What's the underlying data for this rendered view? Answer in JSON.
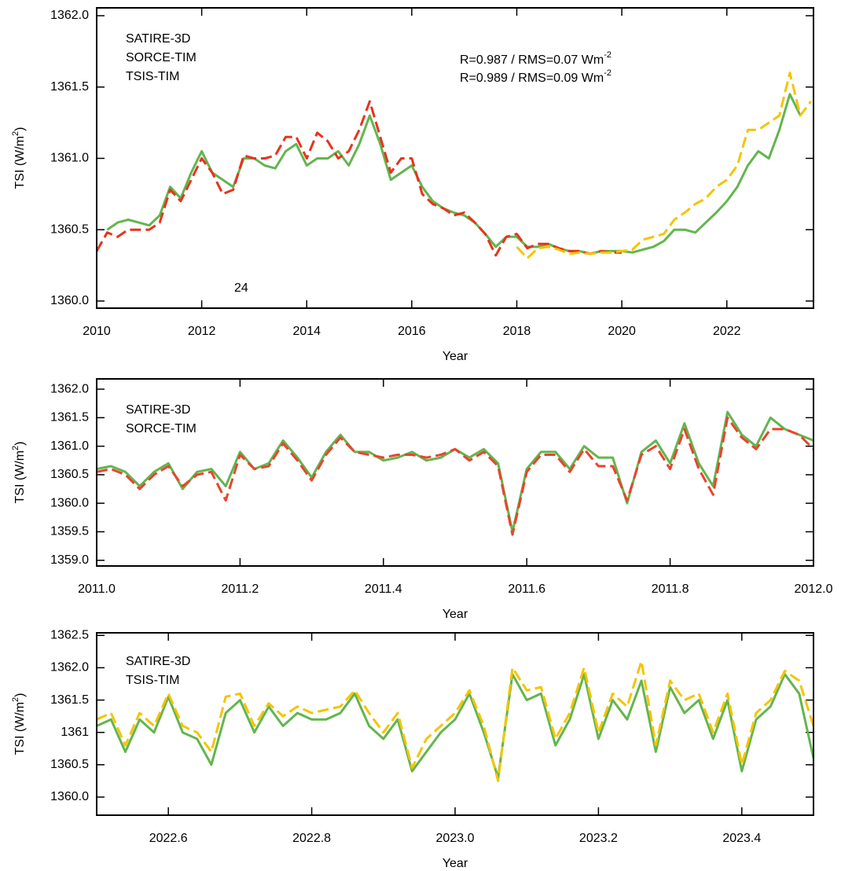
{
  "chart_data": [
    {
      "type": "line",
      "xlabel": "Year",
      "ylabel": [
        "TSI (W/m",
        "2",
        ")"
      ],
      "xlim": [
        2010,
        2023.65
      ],
      "ylim": [
        1359.95,
        1362.055
      ],
      "xticks": [
        2010,
        2012,
        2014,
        2016,
        2018,
        2020,
        2022
      ],
      "yticks": [
        {
          "value": 1360,
          "label": "1360.0"
        },
        1360.5,
        {
          "value": 1361,
          "label": "1361.0"
        },
        1361.5,
        {
          "value": 1362,
          "label": "1362.0"
        }
      ],
      "x": [
        2010.0,
        2010.2,
        2010.4,
        2010.6,
        2010.8,
        2011.0,
        2011.2,
        2011.4,
        2011.6,
        2011.8,
        2012.0,
        2012.2,
        2012.4,
        2012.6,
        2012.8,
        2013.0,
        2013.2,
        2013.4,
        2013.6,
        2013.8,
        2014.0,
        2014.2,
        2014.4,
        2014.6,
        2014.8,
        2015.0,
        2015.2,
        2015.4,
        2015.6,
        2015.8,
        2016.0,
        2016.2,
        2016.4,
        2016.6,
        2016.8,
        2017.0,
        2017.2,
        2017.4,
        2017.6,
        2017.8,
        2018.0,
        2018.2,
        2018.4,
        2018.6,
        2018.8,
        2019.0,
        2019.2,
        2019.4,
        2019.6,
        2019.8,
        2020.0,
        2020.2,
        2020.4,
        2020.6,
        2020.8,
        2021.0,
        2021.2,
        2021.4,
        2021.6,
        2021.8,
        2022.0,
        2022.2,
        2022.4,
        2022.6,
        2022.8,
        2023.0,
        2023.2,
        2023.4,
        2023.6
      ],
      "series": [
        {
          "name": "SATIRE-3D",
          "color": "#63b54f",
          "dashed": false,
          "values": [
            null,
            1360.5,
            1360.55,
            1360.57,
            1360.55,
            1360.53,
            1360.6,
            1360.8,
            1360.72,
            1360.9,
            1361.05,
            1360.9,
            1360.85,
            1360.8,
            1361.0,
            1361.0,
            1360.95,
            1360.93,
            1361.05,
            1361.1,
            1360.95,
            1361.0,
            1361.0,
            1361.05,
            1360.95,
            1361.1,
            1361.3,
            1361.1,
            1360.85,
            1360.9,
            1360.95,
            1360.8,
            1360.7,
            1360.65,
            1360.62,
            1360.6,
            1360.55,
            1360.47,
            1360.38,
            1360.45,
            1360.45,
            1360.38,
            1360.38,
            1360.4,
            1360.37,
            1360.35,
            1360.35,
            1360.33,
            1360.35,
            1360.35,
            1360.35,
            1360.34,
            1360.36,
            1360.38,
            1360.42,
            1360.5,
            1360.5,
            1360.48,
            1360.55,
            1360.62,
            1360.7,
            1360.8,
            1360.95,
            1361.05,
            1361.0,
            1361.2,
            1361.45,
            1361.3,
            null
          ]
        },
        {
          "name": "SORCE-TIM",
          "color": "#e8331c",
          "dashed": true,
          "values": [
            1360.35,
            1360.48,
            1360.45,
            1360.5,
            1360.5,
            1360.5,
            1360.55,
            1360.78,
            1360.7,
            1360.85,
            1361.0,
            1360.9,
            1360.75,
            1360.78,
            1361.02,
            1361.0,
            1361.0,
            1361.02,
            1361.15,
            1361.15,
            1361.0,
            1361.18,
            1361.12,
            1361.0,
            1361.05,
            1361.2,
            1361.4,
            1361.15,
            1360.9,
            1361.0,
            1361.0,
            1360.75,
            1360.68,
            1360.65,
            1360.6,
            1360.62,
            1360.55,
            1360.47,
            1360.32,
            1360.45,
            1360.47,
            1360.37,
            1360.4,
            1360.4,
            1360.37,
            1360.35,
            1360.35,
            1360.33,
            1360.35,
            1360.34,
            1360.34,
            null,
            null,
            null,
            null,
            null,
            null,
            null,
            null,
            null,
            null,
            null,
            null,
            null,
            null,
            null,
            null,
            null,
            null
          ]
        },
        {
          "name": "TSIS-TIM",
          "color": "#f5c400",
          "dashed": true,
          "values": [
            null,
            null,
            null,
            null,
            null,
            null,
            null,
            null,
            null,
            null,
            null,
            null,
            null,
            null,
            null,
            null,
            null,
            null,
            null,
            null,
            null,
            null,
            null,
            null,
            null,
            null,
            null,
            null,
            null,
            null,
            null,
            null,
            null,
            null,
            null,
            null,
            null,
            null,
            null,
            null,
            1360.38,
            1360.3,
            1360.37,
            1360.38,
            1360.36,
            1360.33,
            1360.34,
            1360.33,
            1360.34,
            1360.34,
            1360.35,
            1360.36,
            1360.43,
            1360.45,
            1360.47,
            1360.57,
            1360.62,
            1360.68,
            1360.72,
            1360.8,
            1360.85,
            1360.95,
            1361.2,
            1361.2,
            1361.25,
            1361.3,
            1361.6,
            1361.3,
            1361.4
          ]
        }
      ],
      "annotations": [
        {
          "text": "R=0.987 / RMS=0.07 Wm",
          "sup": "-2",
          "color": "#e8452c"
        },
        {
          "text": "R=0.989 / RMS=0.09 Wm",
          "sup": "-2",
          "color": "#f5c400"
        },
        {
          "text": "24",
          "color": "#000000"
        }
      ]
    },
    {
      "type": "line",
      "xlabel": "Year",
      "ylabel": [
        "TSI (W/m",
        "2",
        ")"
      ],
      "xlim": [
        2011.0,
        2012.0
      ],
      "ylim": [
        1358.9,
        1362.18
      ],
      "xticks": [
        {
          "value": 2011,
          "label": "2011.0"
        },
        2011.2,
        2011.4,
        2011.6,
        2011.8,
        {
          "value": 2012,
          "label": "2012.0"
        }
      ],
      "yticks": [
        {
          "value": 1359,
          "label": "1359.0"
        },
        1359.5,
        {
          "value": 1360,
          "label": "1360.0"
        },
        1360.5,
        {
          "value": 1361,
          "label": "1361.0"
        },
        1361.5,
        {
          "value": 1362,
          "label": "1362.0"
        }
      ],
      "x": [
        2011.0,
        2011.02,
        2011.04,
        2011.06,
        2011.08,
        2011.1,
        2011.12,
        2011.14,
        2011.16,
        2011.18,
        2011.2,
        2011.22,
        2011.24,
        2011.26,
        2011.28,
        2011.3,
        2011.32,
        2011.34,
        2011.36,
        2011.38,
        2011.4,
        2011.42,
        2011.44,
        2011.46,
        2011.48,
        2011.5,
        2011.52,
        2011.54,
        2011.56,
        2011.58,
        2011.6,
        2011.62,
        2011.64,
        2011.66,
        2011.68,
        2011.7,
        2011.72,
        2011.74,
        2011.76,
        2011.78,
        2011.8,
        2011.82,
        2011.84,
        2011.86,
        2011.88,
        2011.9,
        2011.92,
        2011.94,
        2011.96,
        2011.98,
        2012.0
      ],
      "series": [
        {
          "name": "SATIRE-3D",
          "color": "#63b54f",
          "dashed": false,
          "values": [
            1360.6,
            1360.65,
            1360.55,
            1360.3,
            1360.55,
            1360.7,
            1360.25,
            1360.55,
            1360.6,
            1360.3,
            1360.9,
            1360.6,
            1360.7,
            1361.1,
            1360.8,
            1360.45,
            1360.9,
            1361.2,
            1360.9,
            1360.9,
            1360.75,
            1360.8,
            1360.9,
            1360.75,
            1360.8,
            1360.95,
            1360.8,
            1360.95,
            1360.7,
            1359.5,
            1360.6,
            1360.9,
            1360.9,
            1360.6,
            1361.0,
            1360.8,
            1360.8,
            1360.0,
            1360.9,
            1361.1,
            1360.7,
            1361.4,
            1360.7,
            1360.3,
            1361.6,
            1361.2,
            1361.0,
            1361.5,
            1361.3,
            1361.2,
            1361.1
          ]
        },
        {
          "name": "SORCE-TIM",
          "color": "#e8452c",
          "dashed": true,
          "values": [
            1360.55,
            1360.6,
            1360.5,
            1360.25,
            1360.5,
            1360.65,
            1360.3,
            1360.5,
            1360.55,
            1360.05,
            1360.85,
            1360.6,
            1360.65,
            1361.05,
            1360.75,
            1360.4,
            1360.85,
            1361.15,
            1360.9,
            1360.85,
            1360.8,
            1360.85,
            1360.85,
            1360.8,
            1360.85,
            1360.95,
            1360.75,
            1360.9,
            1360.65,
            1359.45,
            1360.55,
            1360.85,
            1360.85,
            1360.55,
            1360.95,
            1360.65,
            1360.65,
            1360.05,
            1360.85,
            1361.0,
            1360.6,
            1361.3,
            1360.6,
            1360.15,
            1361.5,
            1361.15,
            1360.95,
            1361.3,
            1361.3,
            1361.2,
            1360.95
          ]
        }
      ]
    },
    {
      "type": "line",
      "xlabel": "Year",
      "ylabel": [
        "TSI (W/m",
        "2",
        ")"
      ],
      "xlim": [
        2022.5,
        2023.5
      ],
      "ylim": [
        1359.72,
        1362.54
      ],
      "xticks": [
        2022.6,
        2022.8,
        {
          "value": 2023,
          "label": "2023.0"
        },
        2023.2,
        2023.4
      ],
      "yticks": [
        {
          "value": 1360,
          "label": "1360.0"
        },
        1360.5,
        1361,
        1361.5,
        {
          "value": 1362,
          "label": "1362.0"
        },
        1362.5
      ],
      "x": [
        2022.5,
        2022.52,
        2022.54,
        2022.56,
        2022.58,
        2022.6,
        2022.62,
        2022.64,
        2022.66,
        2022.68,
        2022.7,
        2022.72,
        2022.74,
        2022.76,
        2022.78,
        2022.8,
        2022.82,
        2022.84,
        2022.86,
        2022.88,
        2022.9,
        2022.92,
        2022.94,
        2022.96,
        2022.98,
        2023.0,
        2023.02,
        2023.04,
        2023.06,
        2023.08,
        2023.1,
        2023.12,
        2023.14,
        2023.16,
        2023.18,
        2023.2,
        2023.22,
        2023.24,
        2023.26,
        2023.28,
        2023.3,
        2023.32,
        2023.34,
        2023.36,
        2023.38,
        2023.4,
        2023.42,
        2023.44,
        2023.46,
        2023.48,
        2023.5
      ],
      "series": [
        {
          "name": "SATIRE-3D",
          "color": "#63b54f",
          "dashed": false,
          "values": [
            1361.1,
            1361.2,
            1360.7,
            1361.2,
            1361.0,
            1361.55,
            1361.0,
            1360.9,
            1360.5,
            1361.3,
            1361.5,
            1361.0,
            1361.4,
            1361.1,
            1361.3,
            1361.2,
            1361.2,
            1361.3,
            1361.6,
            1361.1,
            1360.9,
            1361.2,
            1360.4,
            1360.7,
            1361.0,
            1361.2,
            1361.6,
            1361.0,
            1360.3,
            1361.9,
            1361.5,
            1361.6,
            1360.8,
            1361.2,
            1361.9,
            1360.9,
            1361.5,
            1361.2,
            1361.8,
            1360.7,
            1361.7,
            1361.3,
            1361.5,
            1360.9,
            1361.5,
            1360.4,
            1361.2,
            1361.4,
            1361.9,
            1361.6,
            1360.6
          ]
        },
        {
          "name": "TSIS-TIM",
          "color": "#f5c400",
          "dashed": true,
          "values": [
            1361.2,
            1361.3,
            1360.8,
            1361.3,
            1361.1,
            1361.6,
            1361.1,
            1361.0,
            1360.7,
            1361.55,
            1361.6,
            1361.1,
            1361.45,
            1361.25,
            1361.4,
            1361.3,
            1361.35,
            1361.4,
            1361.65,
            1361.3,
            1361.0,
            1361.3,
            1360.45,
            1360.9,
            1361.1,
            1361.3,
            1361.65,
            1361.1,
            1360.25,
            1362.0,
            1361.65,
            1361.7,
            1360.9,
            1361.3,
            1362.0,
            1361.0,
            1361.6,
            1361.4,
            1362.1,
            1360.8,
            1361.8,
            1361.5,
            1361.6,
            1361.0,
            1361.6,
            1360.5,
            1361.3,
            1361.5,
            1361.95,
            1361.8,
            1361.1
          ]
        }
      ]
    }
  ]
}
